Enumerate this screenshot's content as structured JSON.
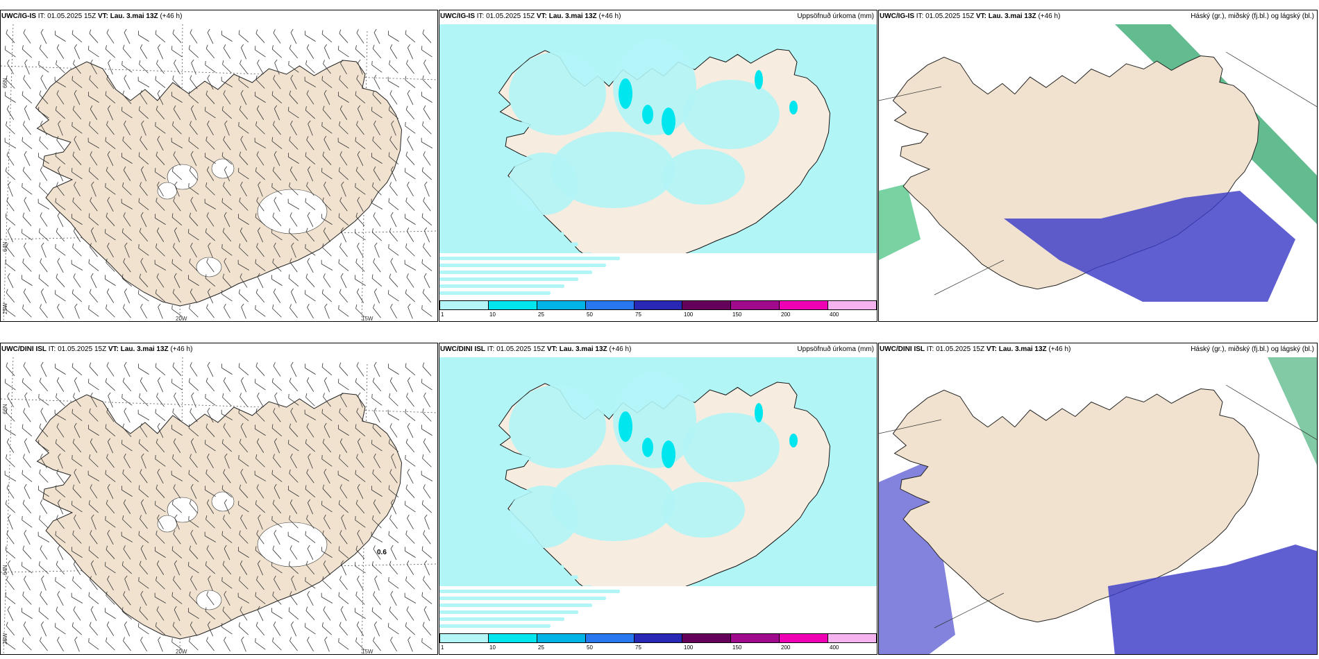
{
  "rows": [
    {
      "model": "UWC/IG-IS",
      "it_label": "IT:",
      "it_value": "01.05.2025 15Z",
      "vt_label": "VT:",
      "vt_value": "Lau. 3.mai 13Z",
      "lead": "(+46 h)"
    },
    {
      "model": "UWC/DINI ISL",
      "it_label": "IT:",
      "it_value": "01.05.2025 15Z",
      "vt_label": "VT:",
      "vt_value": "Lau. 3.mai 13Z",
      "lead": "(+46 h)"
    }
  ],
  "precip_title": "Uppsöfnuð úrkoma (mm)",
  "cloud_title": "Háský (gr.), miðský (fj.bl.) og lágský (bl.)",
  "lat_labels": [
    "66N",
    "64N",
    "25W"
  ],
  "lon_labels": [
    "20W",
    "15W"
  ],
  "precip_legend": {
    "ticks": [
      "1",
      "10",
      "25",
      "50",
      "75",
      "100",
      "150",
      "200",
      "400"
    ],
    "colors": [
      "#b4f5f7",
      "#00e6ee",
      "#00b4e6",
      "#2878f0",
      "#2828b4",
      "#64005a",
      "#a00a8c",
      "#f000b4",
      "#f5b4f0"
    ]
  },
  "dini_wind_marker": "0.6",
  "colors": {
    "land": "#f0e2cf",
    "sea_precip": "#b2f5f7",
    "high_cloud": "#2ea56a",
    "low_cloud": "#3c3cc8"
  }
}
